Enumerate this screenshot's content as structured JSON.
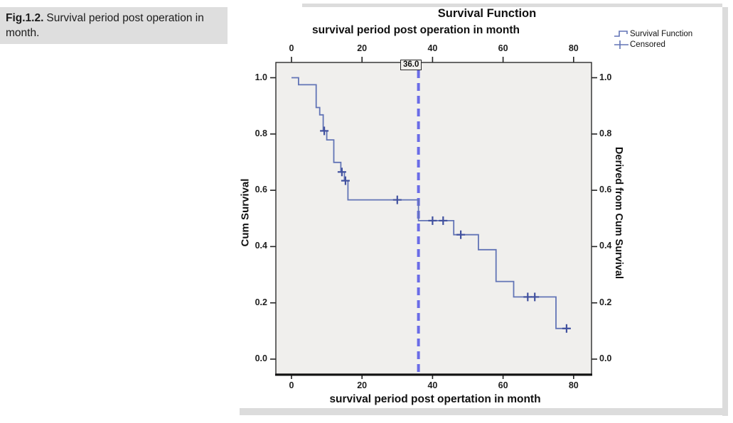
{
  "caption": {
    "label": "Fig.1.2.",
    "text": "Survival period post operation in month."
  },
  "chart": {
    "title": "Survival Function",
    "top_axis_title": "survival period post operation in month",
    "bottom_axis_title": "survival period post opertation in month",
    "left_axis_title": "Cum Survival",
    "right_axis_title": "Derived from Cum Survival",
    "reference_label": "36.0",
    "legend": [
      {
        "label": "Survival Function",
        "icon": "step-line-icon"
      },
      {
        "label": "Censored",
        "icon": "plus-marker-icon"
      }
    ]
  },
  "chart_data": {
    "type": "line",
    "chart_style": "kaplan-meier-step",
    "title": "Survival Function",
    "x_axis": {
      "top_label": "survival period post operation in month",
      "bottom_label": "survival period post opertation in month",
      "ticks": [
        0,
        20,
        40,
        60,
        80
      ],
      "tick_labels": [
        "0",
        "20",
        "40",
        "60",
        "80"
      ],
      "range": [
        -4.5,
        85
      ]
    },
    "y_axis": {
      "left_label": "Cum Survival",
      "right_label": "Derived from Cum Survival",
      "ticks": [
        0.0,
        0.2,
        0.4,
        0.6,
        0.8,
        1.0
      ],
      "tick_labels": [
        "0.0",
        "0.2",
        "0.4",
        "0.6",
        "0.8",
        "1.0"
      ],
      "range": [
        -0.06,
        1.05
      ]
    },
    "grid": false,
    "legend_position": "top-right",
    "reference_line": {
      "x": 36.0,
      "label": "36.0"
    },
    "series": [
      {
        "name": "Survival Function",
        "type": "step",
        "points": [
          [
            0,
            1.0
          ],
          [
            2,
            0.975
          ],
          [
            7,
            0.894
          ],
          [
            8,
            0.868
          ],
          [
            9,
            0.811
          ],
          [
            10,
            0.779
          ],
          [
            12,
            0.699
          ],
          [
            14,
            0.665
          ],
          [
            15,
            0.634
          ],
          [
            16,
            0.566
          ],
          [
            36,
            0.492
          ],
          [
            46,
            0.442
          ],
          [
            53,
            0.389
          ],
          [
            58,
            0.276
          ],
          [
            63,
            0.221
          ],
          [
            75,
            0.109
          ]
        ],
        "end_x": 79
      },
      {
        "name": "Censored",
        "type": "scatter-plus",
        "points": [
          [
            9.3,
            0.811
          ],
          [
            14.3,
            0.665
          ],
          [
            15.3,
            0.634
          ],
          [
            30,
            0.566
          ],
          [
            40,
            0.492
          ],
          [
            43,
            0.492
          ],
          [
            48,
            0.442
          ],
          [
            67,
            0.221
          ],
          [
            69,
            0.221
          ],
          [
            78,
            0.109
          ]
        ]
      }
    ],
    "colors": {
      "curve": "#6274b6",
      "censored": "#41519f",
      "reference_line": "#5356e6",
      "plot_bg": "#f0efed",
      "frame": "#2b2b2b"
    }
  }
}
